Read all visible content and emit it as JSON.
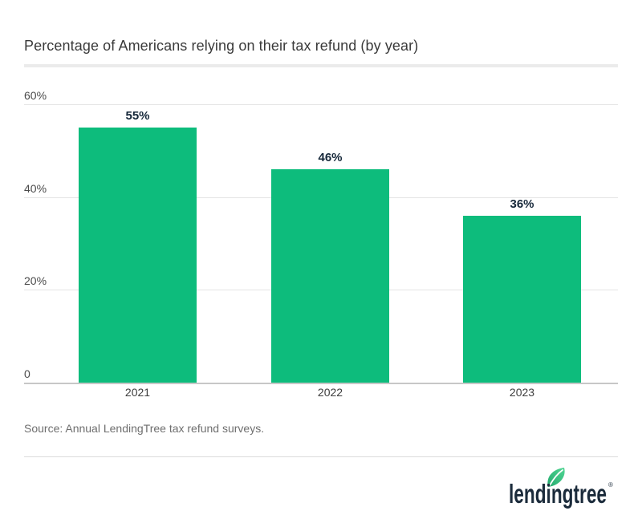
{
  "page": {
    "title": "Percentage of Americans relying on their tax refund (by year)",
    "source": "Source: Annual LendingTree tax refund surveys.",
    "logo_text": "lendingtree",
    "logo_reg": "®"
  },
  "colors": {
    "bar_green": "#0dbc7c",
    "title_text": "#3a3a3a",
    "value_label": "#16283a",
    "axis_tick": "#4b4b4b",
    "gridline": "#e4e4e4",
    "axis_line": "#c7c7c7",
    "source_text": "#6e6e6e",
    "logo_navy": "#1b2b3b",
    "leaf_green_dark": "#23aa6e",
    "leaf_green_light": "#52d694"
  },
  "chart_data": {
    "type": "bar",
    "title": "Percentage of Americans relying on their tax refund (by year)",
    "categories": [
      "2021",
      "2022",
      "2023"
    ],
    "values": [
      55,
      46,
      36
    ],
    "value_labels": [
      "55%",
      "46%",
      "36%"
    ],
    "y_ticks": [
      {
        "value": 60,
        "label": "60%"
      },
      {
        "value": 40,
        "label": "40%"
      },
      {
        "value": 20,
        "label": "20%"
      },
      {
        "value": 0,
        "label": "0"
      }
    ],
    "ylim": [
      0,
      60
    ],
    "xlabel": "",
    "ylabel": "",
    "grid": true,
    "legend_position": "none",
    "bar_color": "#0dbc7c",
    "source": "Source: Annual LendingTree tax refund surveys."
  }
}
